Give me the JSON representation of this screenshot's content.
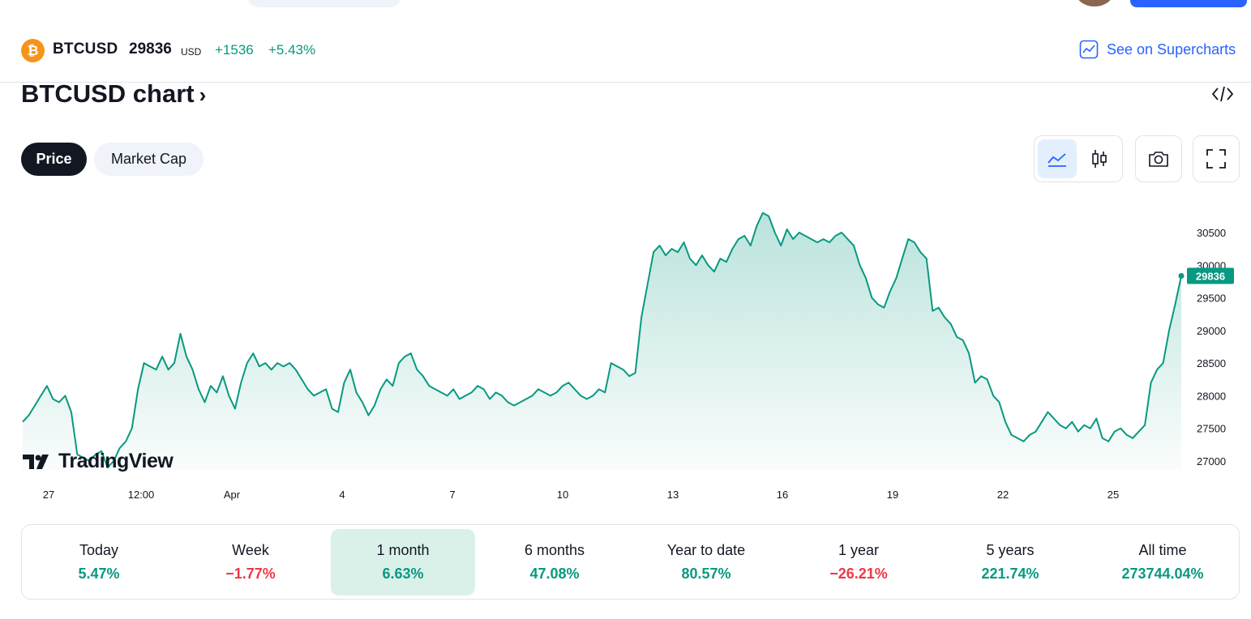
{
  "symbol": {
    "logo_glyph": "₿",
    "name": "BTCUSD",
    "price": "29836",
    "currency": "USD",
    "change": "+1536",
    "change_pct": "+5.43%",
    "supercharts_label": "See on Supercharts"
  },
  "chart_title": "BTCUSD chart",
  "tabs": [
    {
      "label": "Price",
      "active": true
    },
    {
      "label": "Market Cap",
      "active": false
    }
  ],
  "toolbar": [
    "area-chart-icon",
    "candles-icon",
    "camera-icon",
    "fullscreen-icon"
  ],
  "watermark": "TradingView",
  "colors": {
    "line": "#089981",
    "positive": "#089981",
    "negative": "#f23645",
    "accent": "#2962ff"
  },
  "chart_data": {
    "type": "area",
    "x_tick_labels": [
      "27",
      "12:00",
      "Apr",
      "4",
      "7",
      "10",
      "13",
      "16",
      "19",
      "22",
      "25"
    ],
    "y_tick_labels": [
      "30500",
      "30000",
      "29500",
      "29000",
      "28500",
      "28000",
      "27500",
      "27000"
    ],
    "ylim": [
      26800,
      30800
    ],
    "last_value_label": "29836",
    "series": [
      {
        "values": [
          27600,
          27700,
          27850,
          28000,
          28150,
          27950,
          27900,
          28000,
          27750,
          27100,
          27050,
          27000,
          27100,
          27150,
          26900,
          27000,
          27200,
          27300,
          27500,
          28100,
          28500,
          28450,
          28400,
          28600,
          28400,
          28500,
          28950,
          28600,
          28400,
          28100,
          27900,
          28150,
          28050,
          28300,
          28000,
          27800,
          28200,
          28500,
          28650,
          28450,
          28500,
          28400,
          28500,
          28450,
          28500,
          28400,
          28250,
          28100,
          28000,
          28050,
          28100,
          27800,
          27750,
          28200,
          28400,
          28050,
          27900,
          27700,
          27850,
          28100,
          28250,
          28150,
          28500,
          28600,
          28650,
          28400,
          28300,
          28150,
          28100,
          28050,
          28000,
          28100,
          27950,
          28000,
          28050,
          28150,
          28100,
          27950,
          28050,
          28000,
          27900,
          27850,
          27900,
          27950,
          28000,
          28100,
          28050,
          28000,
          28050,
          28150,
          28200,
          28100,
          28000,
          27950,
          28000,
          28100,
          28050,
          28500,
          28450,
          28400,
          28300,
          28350,
          29200,
          29700,
          30200,
          30300,
          30150,
          30250,
          30200,
          30350,
          30100,
          30000,
          30150,
          30000,
          29900,
          30100,
          30050,
          30250,
          30400,
          30450,
          30300,
          30600,
          30800,
          30750,
          30500,
          30300,
          30550,
          30400,
          30500,
          30450,
          30400,
          30350,
          30400,
          30350,
          30450,
          30500,
          30400,
          30300,
          30000,
          29800,
          29500,
          29400,
          29350,
          29600,
          29800,
          30100,
          30400,
          30350,
          30200,
          30100,
          29300,
          29350,
          29200,
          29100,
          28900,
          28850,
          28650,
          28200,
          28300,
          28250,
          28000,
          27900,
          27600,
          27400,
          27350,
          27300,
          27400,
          27450,
          27600,
          27750,
          27650,
          27550,
          27500,
          27600,
          27450,
          27550,
          27500,
          27650,
          27350,
          27300,
          27450,
          27500,
          27400,
          27350,
          27450,
          27550,
          28200,
          28400,
          28500,
          29000,
          29400,
          29836
        ]
      }
    ]
  },
  "performance": [
    {
      "label": "Today",
      "value": "5.47%",
      "sign": "pos",
      "active": false
    },
    {
      "label": "Week",
      "value": "−1.77%",
      "sign": "neg",
      "active": false
    },
    {
      "label": "1 month",
      "value": "6.63%",
      "sign": "pos",
      "active": true
    },
    {
      "label": "6 months",
      "value": "47.08%",
      "sign": "pos",
      "active": false
    },
    {
      "label": "Year to date",
      "value": "80.57%",
      "sign": "pos",
      "active": false
    },
    {
      "label": "1 year",
      "value": "−26.21%",
      "sign": "neg",
      "active": false
    },
    {
      "label": "5 years",
      "value": "221.74%",
      "sign": "pos",
      "active": false
    },
    {
      "label": "All time",
      "value": "273744.04%",
      "sign": "pos",
      "active": false
    }
  ]
}
